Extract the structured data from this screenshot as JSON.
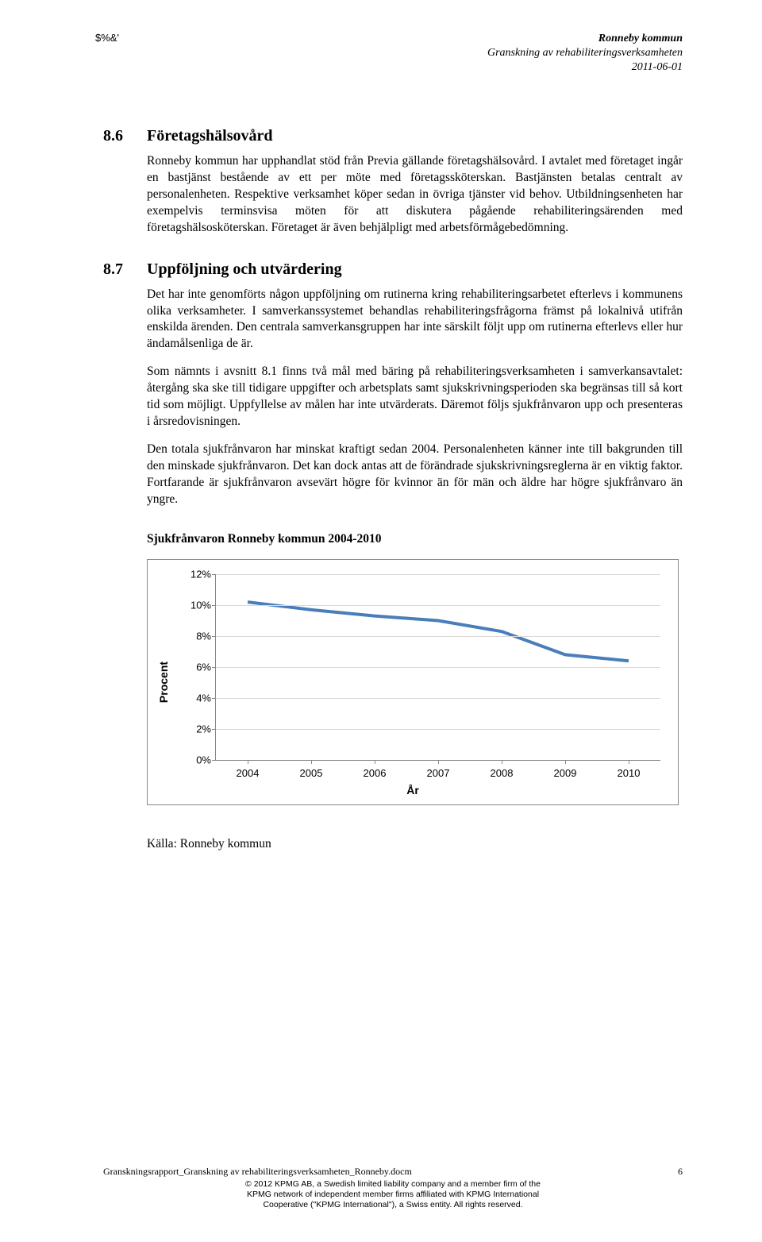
{
  "header": {
    "top_left": "$%&'",
    "line1": "Ronneby kommun",
    "line2": "Granskning av rehabiliteringsverksamheten",
    "line3": "2011-06-01"
  },
  "section86": {
    "num": "8.6",
    "title": "Företagshälsovård",
    "p1": "Ronneby kommun har upphandlat stöd från Previa gällande företagshälsovård. I avtalet med företaget ingår en bastjänst bestående av ett per möte med företagssköterskan. Bastjänsten betalas centralt av personalenheten. Respektive verksamhet köper sedan in övriga tjänster vid behov. Utbildningsenheten har exempelvis terminsvisa möten för att diskutera pågående rehabiliteringsärenden med företagshälsosköterskan. Företaget är även behjälpligt med arbetsförmågebedömning."
  },
  "section87": {
    "num": "8.7",
    "title": "Uppföljning och utvärdering",
    "p1": "Det har inte genomförts någon uppföljning om rutinerna kring rehabiliteringsarbetet efterlevs i kommunens olika verksamheter. I samverkanssystemet behandlas rehabiliteringsfrågorna främst på lokalnivå utifrån enskilda ärenden. Den centrala samverkansgruppen har inte särskilt följt upp om rutinerna efterlevs eller hur ändamålsenliga de är.",
    "p2": "Som nämnts i avsnitt 8.1 finns två mål med bäring på rehabiliteringsverksamheten i samverkansavtalet: återgång ska ske till tidigare uppgifter och arbetsplats samt sjukskrivningsperioden ska begränsas till så kort tid som möjligt. Uppfyllelse av målen har inte utvärderats. Däremot följs sjukfrånvaron upp och presenteras i årsredovisningen.",
    "p3": "Den totala sjukfrånvaron har minskat kraftigt sedan 2004. Personalenheten känner inte till bakgrunden till den minskade sjukfrånvaron. Det kan dock antas att de förändrade sjukskrivningsreglerna är en viktig faktor. Fortfarande är sjukfrånvaron avsevärt högre för kvinnor än för män och äldre har högre sjukfrånvaro än yngre."
  },
  "chart": {
    "title": "Sjukfrånvaron Ronneby kommun 2004-2010",
    "type": "line",
    "ylabel": "Procent",
    "xlabel": "År",
    "ylim": [
      0,
      12
    ],
    "ytick_step": 2,
    "yticks": [
      "0%",
      "2%",
      "4%",
      "6%",
      "8%",
      "10%",
      "12%"
    ],
    "x_values": [
      2004,
      2005,
      2006,
      2007,
      2008,
      2009,
      2010
    ],
    "x_labels": [
      "2004",
      "2005",
      "2006",
      "2007",
      "2008",
      "2009",
      "2010"
    ],
    "y_values": [
      10.2,
      9.7,
      9.3,
      9.0,
      8.3,
      6.8,
      6.4
    ],
    "line_color": "#4a7ebb",
    "line_width": 4,
    "grid_color": "#d9d9d9",
    "axis_color": "#888888",
    "background_color": "#ffffff",
    "label_fontsize": 13,
    "font_family": "Arial"
  },
  "source": "Källa: Ronneby kommun",
  "footer": {
    "docname": "Granskningsrapport_Granskning av rehabiliteringsverksamheten_Ronneby.docm",
    "pagenum": "6",
    "line1": "© 2012 KPMG AB, a Swedish limited liability company and a member firm of the",
    "line2": "KPMG network of independent member firms affiliated with KPMG International",
    "line3": "Cooperative (\"KPMG International\"), a Swiss entity. All rights reserved."
  }
}
